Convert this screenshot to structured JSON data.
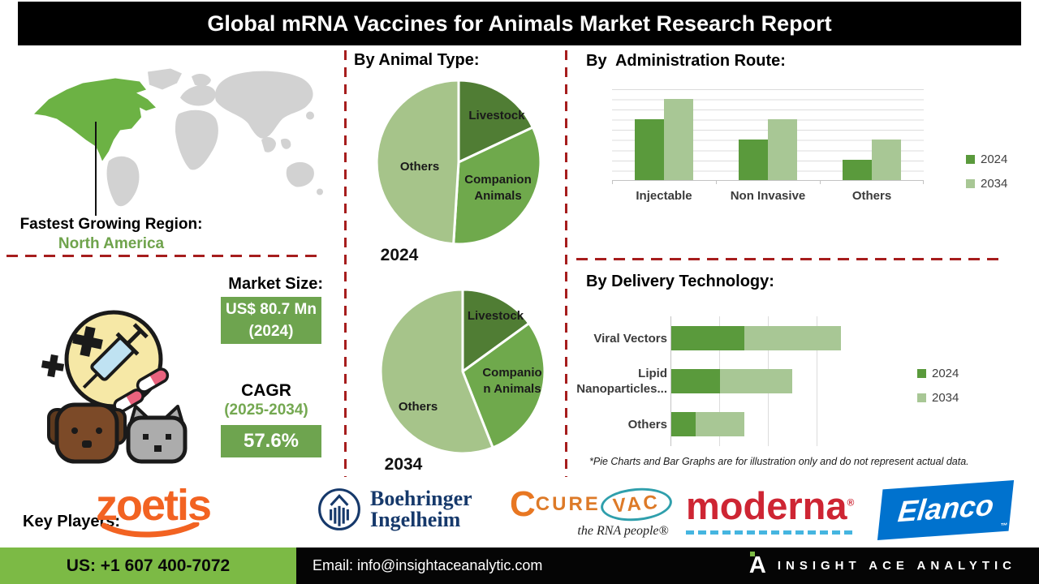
{
  "title": "Global mRNA Vaccines for Animals Market Research Report",
  "region": {
    "label": "Fastest Growing Region:",
    "value": "North America"
  },
  "sections": {
    "animal_type": "By Animal Type:",
    "admin_route": "By  Administration Route:",
    "delivery": "By Delivery Technology:"
  },
  "market": {
    "heading": "Market Size:",
    "size_value": "US$ 80.7 Mn",
    "size_year": "(2024)",
    "cagr_label": "CAGR",
    "cagr_period": "(2025-2034)",
    "cagr_value": "57.6%"
  },
  "chart_data": [
    {
      "type": "pie",
      "year": "2024",
      "title": "By Animal Type:",
      "labels": [
        "Livestock",
        "Companion Animals",
        "Others"
      ],
      "values": [
        18,
        33,
        49
      ],
      "unit": "illustrative share %",
      "colors": [
        "#507D34",
        "#6FA94C",
        "#A6C48A"
      ]
    },
    {
      "type": "pie",
      "year": "2034",
      "title": "By Animal Type:",
      "labels": [
        "Livestock",
        "Companion Animals",
        "Others"
      ],
      "values": [
        15,
        29,
        56
      ],
      "unit": "illustrative share %",
      "colors": [
        "#507D34",
        "#6FA94C",
        "#A6C48A"
      ]
    },
    {
      "type": "bar",
      "title": "By  Administration Route:",
      "categories": [
        "Injectable",
        "Non Invasive",
        "Others"
      ],
      "series": [
        {
          "name": "2024",
          "color": "#5A9A3C",
          "values": [
            30,
            20,
            10
          ]
        },
        {
          "name": "2034",
          "color": "#A8C795",
          "values": [
            40,
            30,
            20
          ]
        }
      ],
      "ylim": [
        0,
        45
      ],
      "gridline_step": 5,
      "grid": true,
      "legend_position": "right"
    },
    {
      "type": "stacked-hbar",
      "title": "By Delivery Technology:",
      "categories": [
        "Viral Vectors",
        "Lipid Nanoparticles...",
        "Others"
      ],
      "series": [
        {
          "name": "2024",
          "color": "#5A9A3C",
          "values": [
            15,
            10,
            5
          ]
        },
        {
          "name": "2034",
          "color": "#A8C795",
          "values": [
            20,
            15,
            10
          ]
        }
      ],
      "xlim": [
        0,
        40
      ],
      "gridline_step": 10,
      "grid": true,
      "legend_position": "right"
    }
  ],
  "disclaimer": "*Pie Charts and Bar Graphs are for illustration only and do not represent actual data.",
  "key_players": {
    "label": "Key Players:",
    "companies": [
      "zoetis",
      "Boehringer Ingelheim",
      "CureVac",
      "moderna",
      "Elanco"
    ],
    "zoetis": "zoetis",
    "boehringer_line1": "Boehringer",
    "boehringer_line2": "Ingelheim",
    "curevac_part1": "CURE",
    "curevac_part2": "VAC",
    "curevac_tagline": "the RNA people®",
    "moderna": "moderna",
    "moderna_mark": "®",
    "elanco": "Elanco",
    "elanco_mark": "™"
  },
  "footer": {
    "phone": "US: +1 607 400-7072",
    "email": "Email: info@insightaceanalytic.com",
    "brand_initial": "A",
    "brand": "INSIGHT ACE ANALYTIC"
  },
  "colors": {
    "dark_green": "#507D34",
    "mid_green": "#6FA94C",
    "light_green": "#A6C48A",
    "bar_2024": "#5A9A3C",
    "bar_2034": "#A8C795",
    "accent_green_box": "#6EA44F",
    "footer_green": "#7CBA45",
    "divider_red": "#A61D1D",
    "map_region_green": "#6CB244",
    "map_gray": "#D2D2D2"
  }
}
